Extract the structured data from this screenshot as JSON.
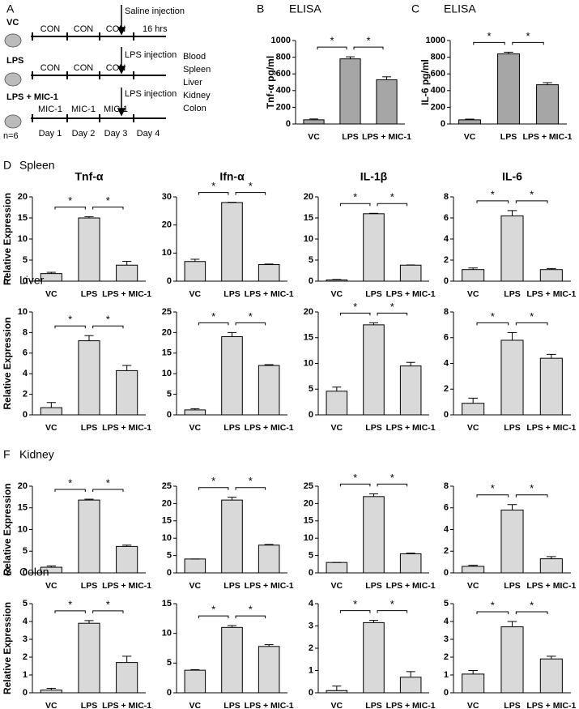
{
  "diagram": {
    "panel": "A",
    "groups": [
      "VC",
      "LPS",
      "LPS + MIC-1"
    ],
    "n": "n=6",
    "row1": [
      "CON",
      "CON",
      "CON"
    ],
    "row2": [
      "CON",
      "CON",
      "CON"
    ],
    "row3": [
      "MIC-1",
      "MIC-1",
      "MIC-1"
    ],
    "injections": [
      "Saline injection",
      "LPS injection",
      "LPS injection"
    ],
    "duration": "16 hrs",
    "organs": [
      "Blood",
      "Spleen",
      "Liver",
      "Kidney",
      "Colon"
    ],
    "days": [
      "Day 1",
      "Day 2",
      "Day 3",
      "Day 4"
    ]
  },
  "chart_data": [
    {
      "type": "bar",
      "panel": "B",
      "title": "ELISA",
      "ylabel": "Tnf-α pg/ml",
      "categories": [
        "VC",
        "LPS",
        "LPS + MIC-1"
      ],
      "values": [
        50,
        780,
        530
      ],
      "errors": [
        10,
        25,
        35
      ],
      "ylim": [
        0,
        1000
      ],
      "yticks": [
        0,
        200,
        400,
        600,
        800,
        1000
      ],
      "significance": [
        "*",
        "*"
      ],
      "color": "#a6a6a6"
    },
    {
      "type": "bar",
      "panel": "C",
      "title": "ELISA",
      "ylabel": "IL-6 pg/ml",
      "categories": [
        "VC",
        "LPS",
        "LPS + MIC-1"
      ],
      "values": [
        50,
        840,
        470
      ],
      "errors": [
        8,
        20,
        25
      ],
      "ylim": [
        0,
        1000
      ],
      "yticks": [
        0,
        200,
        400,
        600,
        800,
        1000
      ],
      "significance": [
        "*",
        "*"
      ],
      "color": "#a6a6a6"
    },
    {
      "type": "bar",
      "panel": "D",
      "row_label": "Spleen",
      "title": "Tnf-α",
      "ylabel": "Relative Expression",
      "categories": [
        "VC",
        "LPS",
        "LPS + MIC-1"
      ],
      "values": [
        1.8,
        15,
        3.8
      ],
      "errors": [
        0.3,
        0.3,
        0.9
      ],
      "ylim": [
        0,
        20
      ],
      "yticks": [
        0,
        5,
        10,
        15,
        20
      ],
      "significance": [
        "*",
        "*"
      ],
      "color": "#d9d9d9"
    },
    {
      "type": "bar",
      "title": "Ifn-α",
      "categories": [
        "VC",
        "LPS",
        "LPS + MIC-1"
      ],
      "values": [
        7,
        28,
        5.9
      ],
      "errors": [
        0.8,
        0.1,
        0.2
      ],
      "ylim": [
        0,
        30
      ],
      "yticks": [
        0,
        10,
        20,
        30
      ],
      "significance": [
        "*",
        "*"
      ],
      "color": "#d9d9d9"
    },
    {
      "type": "bar",
      "title": "IL-1β",
      "categories": [
        "VC",
        "LPS",
        "LPS + MIC-1"
      ],
      "values": [
        0.3,
        16,
        3.8
      ],
      "errors": [
        0.1,
        0.1,
        0.05
      ],
      "ylim": [
        0,
        20
      ],
      "yticks": [
        0,
        5,
        10,
        15,
        20
      ],
      "significance": [
        "*",
        "*"
      ],
      "color": "#d9d9d9"
    },
    {
      "type": "bar",
      "title": "IL-6",
      "categories": [
        "VC",
        "LPS",
        "LPS + MIC-1"
      ],
      "values": [
        1.1,
        6.2,
        1.1
      ],
      "errors": [
        0.15,
        0.5,
        0.1
      ],
      "ylim": [
        0,
        8
      ],
      "yticks": [
        0,
        2,
        4,
        6,
        8
      ],
      "significance": [
        "*",
        "*"
      ],
      "color": "#d9d9d9"
    },
    {
      "type": "bar",
      "panel": "E",
      "row_label": "Liver",
      "ylabel": "Relative Expression",
      "categories": [
        "VC",
        "LPS",
        "LPS + MIC-1"
      ],
      "values": [
        0.7,
        7.2,
        4.3
      ],
      "errors": [
        0.5,
        0.5,
        0.5
      ],
      "ylim": [
        0,
        10
      ],
      "yticks": [
        0,
        2,
        4,
        6,
        8,
        10
      ],
      "significance": [
        "*",
        "*"
      ],
      "color": "#d9d9d9"
    },
    {
      "type": "bar",
      "categories": [
        "VC",
        "LPS",
        "LPS + MIC-1"
      ],
      "values": [
        1.2,
        19,
        12
      ],
      "errors": [
        0.3,
        1,
        0.2
      ],
      "ylim": [
        0,
        25
      ],
      "yticks": [
        0,
        5,
        10,
        15,
        20,
        25
      ],
      "significance": [
        "*",
        "*"
      ],
      "color": "#d9d9d9"
    },
    {
      "type": "bar",
      "categories": [
        "VC",
        "LPS",
        "LPS + MIC-1"
      ],
      "values": [
        4.6,
        17.5,
        9.5
      ],
      "errors": [
        0.8,
        0.4,
        0.7
      ],
      "ylim": [
        0,
        20
      ],
      "yticks": [
        0,
        5,
        10,
        15,
        20
      ],
      "significance": [
        "*",
        "*"
      ],
      "color": "#d9d9d9"
    },
    {
      "type": "bar",
      "categories": [
        "VC",
        "LPS",
        "LPS + MIC-1"
      ],
      "values": [
        0.9,
        5.8,
        4.4
      ],
      "errors": [
        0.4,
        0.6,
        0.3
      ],
      "ylim": [
        0,
        8
      ],
      "yticks": [
        0,
        2,
        4,
        6,
        8
      ],
      "significance": [
        "*",
        "*"
      ],
      "color": "#d9d9d9"
    },
    {
      "type": "bar",
      "panel": "F",
      "row_label": "Kidney",
      "ylabel": "Relative Expression",
      "categories": [
        "VC",
        "LPS",
        "LPS + MIC-1"
      ],
      "values": [
        1.3,
        16.8,
        6.1
      ],
      "errors": [
        0.3,
        0.2,
        0.3
      ],
      "ylim": [
        0,
        20
      ],
      "yticks": [
        0,
        5,
        10,
        15,
        20
      ],
      "significance": [
        "*",
        "*"
      ],
      "color": "#d9d9d9"
    },
    {
      "type": "bar",
      "categories": [
        "VC",
        "LPS",
        "LPS + MIC-1"
      ],
      "values": [
        4,
        21,
        8
      ],
      "errors": [
        0,
        0.8,
        0.2
      ],
      "ylim": [
        0,
        25
      ],
      "yticks": [
        0,
        5,
        10,
        15,
        20,
        25
      ],
      "significance": [
        "*",
        "*"
      ],
      "color": "#d9d9d9"
    },
    {
      "type": "bar",
      "categories": [
        "VC",
        "LPS",
        "LPS + MIC-1"
      ],
      "values": [
        3,
        22,
        5.5
      ],
      "errors": [
        0,
        0.8,
        0.2
      ],
      "ylim": [
        0,
        25
      ],
      "yticks": [
        0,
        5,
        10,
        15,
        20,
        25
      ],
      "significance": [
        "*",
        "*"
      ],
      "color": "#d9d9d9"
    },
    {
      "type": "bar",
      "categories": [
        "VC",
        "LPS",
        "LPS + MIC-1"
      ],
      "values": [
        0.6,
        5.8,
        1.3
      ],
      "errors": [
        0.1,
        0.5,
        0.2
      ],
      "ylim": [
        0,
        8
      ],
      "yticks": [
        0,
        2,
        4,
        6,
        8
      ],
      "significance": [
        "*",
        "*"
      ],
      "color": "#d9d9d9"
    },
    {
      "type": "bar",
      "panel": "G",
      "row_label": "Colon",
      "ylabel": "Relative Expression",
      "categories": [
        "VC",
        "LPS",
        "LPS + MIC-1"
      ],
      "values": [
        0.15,
        3.9,
        1.7
      ],
      "errors": [
        0.1,
        0.15,
        0.35
      ],
      "ylim": [
        0,
        5
      ],
      "yticks": [
        0,
        1,
        2,
        3,
        4,
        5
      ],
      "significance": [
        "*",
        "*"
      ],
      "color": "#d9d9d9"
    },
    {
      "type": "bar",
      "categories": [
        "VC",
        "LPS",
        "LPS + MIC-1"
      ],
      "values": [
        3.8,
        11,
        7.8
      ],
      "errors": [
        0.1,
        0.3,
        0.3
      ],
      "ylim": [
        0,
        15
      ],
      "yticks": [
        0,
        5,
        10,
        15
      ],
      "significance": [
        "*",
        "*"
      ],
      "color": "#d9d9d9"
    },
    {
      "type": "bar",
      "categories": [
        "VC",
        "LPS",
        "LPS + MIC-1"
      ],
      "values": [
        0.1,
        3.15,
        0.7
      ],
      "errors": [
        0.2,
        0.1,
        0.25
      ],
      "ylim": [
        0,
        4
      ],
      "yticks": [
        0,
        1,
        2,
        3,
        4
      ],
      "significance": [
        "*",
        "*"
      ],
      "color": "#d9d9d9"
    },
    {
      "type": "bar",
      "categories": [
        "VC",
        "LPS",
        "LPS + MIC-1"
      ],
      "values": [
        1.05,
        3.7,
        1.9
      ],
      "errors": [
        0.2,
        0.3,
        0.15
      ],
      "ylim": [
        0,
        5
      ],
      "yticks": [
        0,
        1,
        2,
        3,
        4,
        5
      ],
      "significance": [
        "*",
        "*"
      ],
      "color": "#d9d9d9"
    }
  ]
}
